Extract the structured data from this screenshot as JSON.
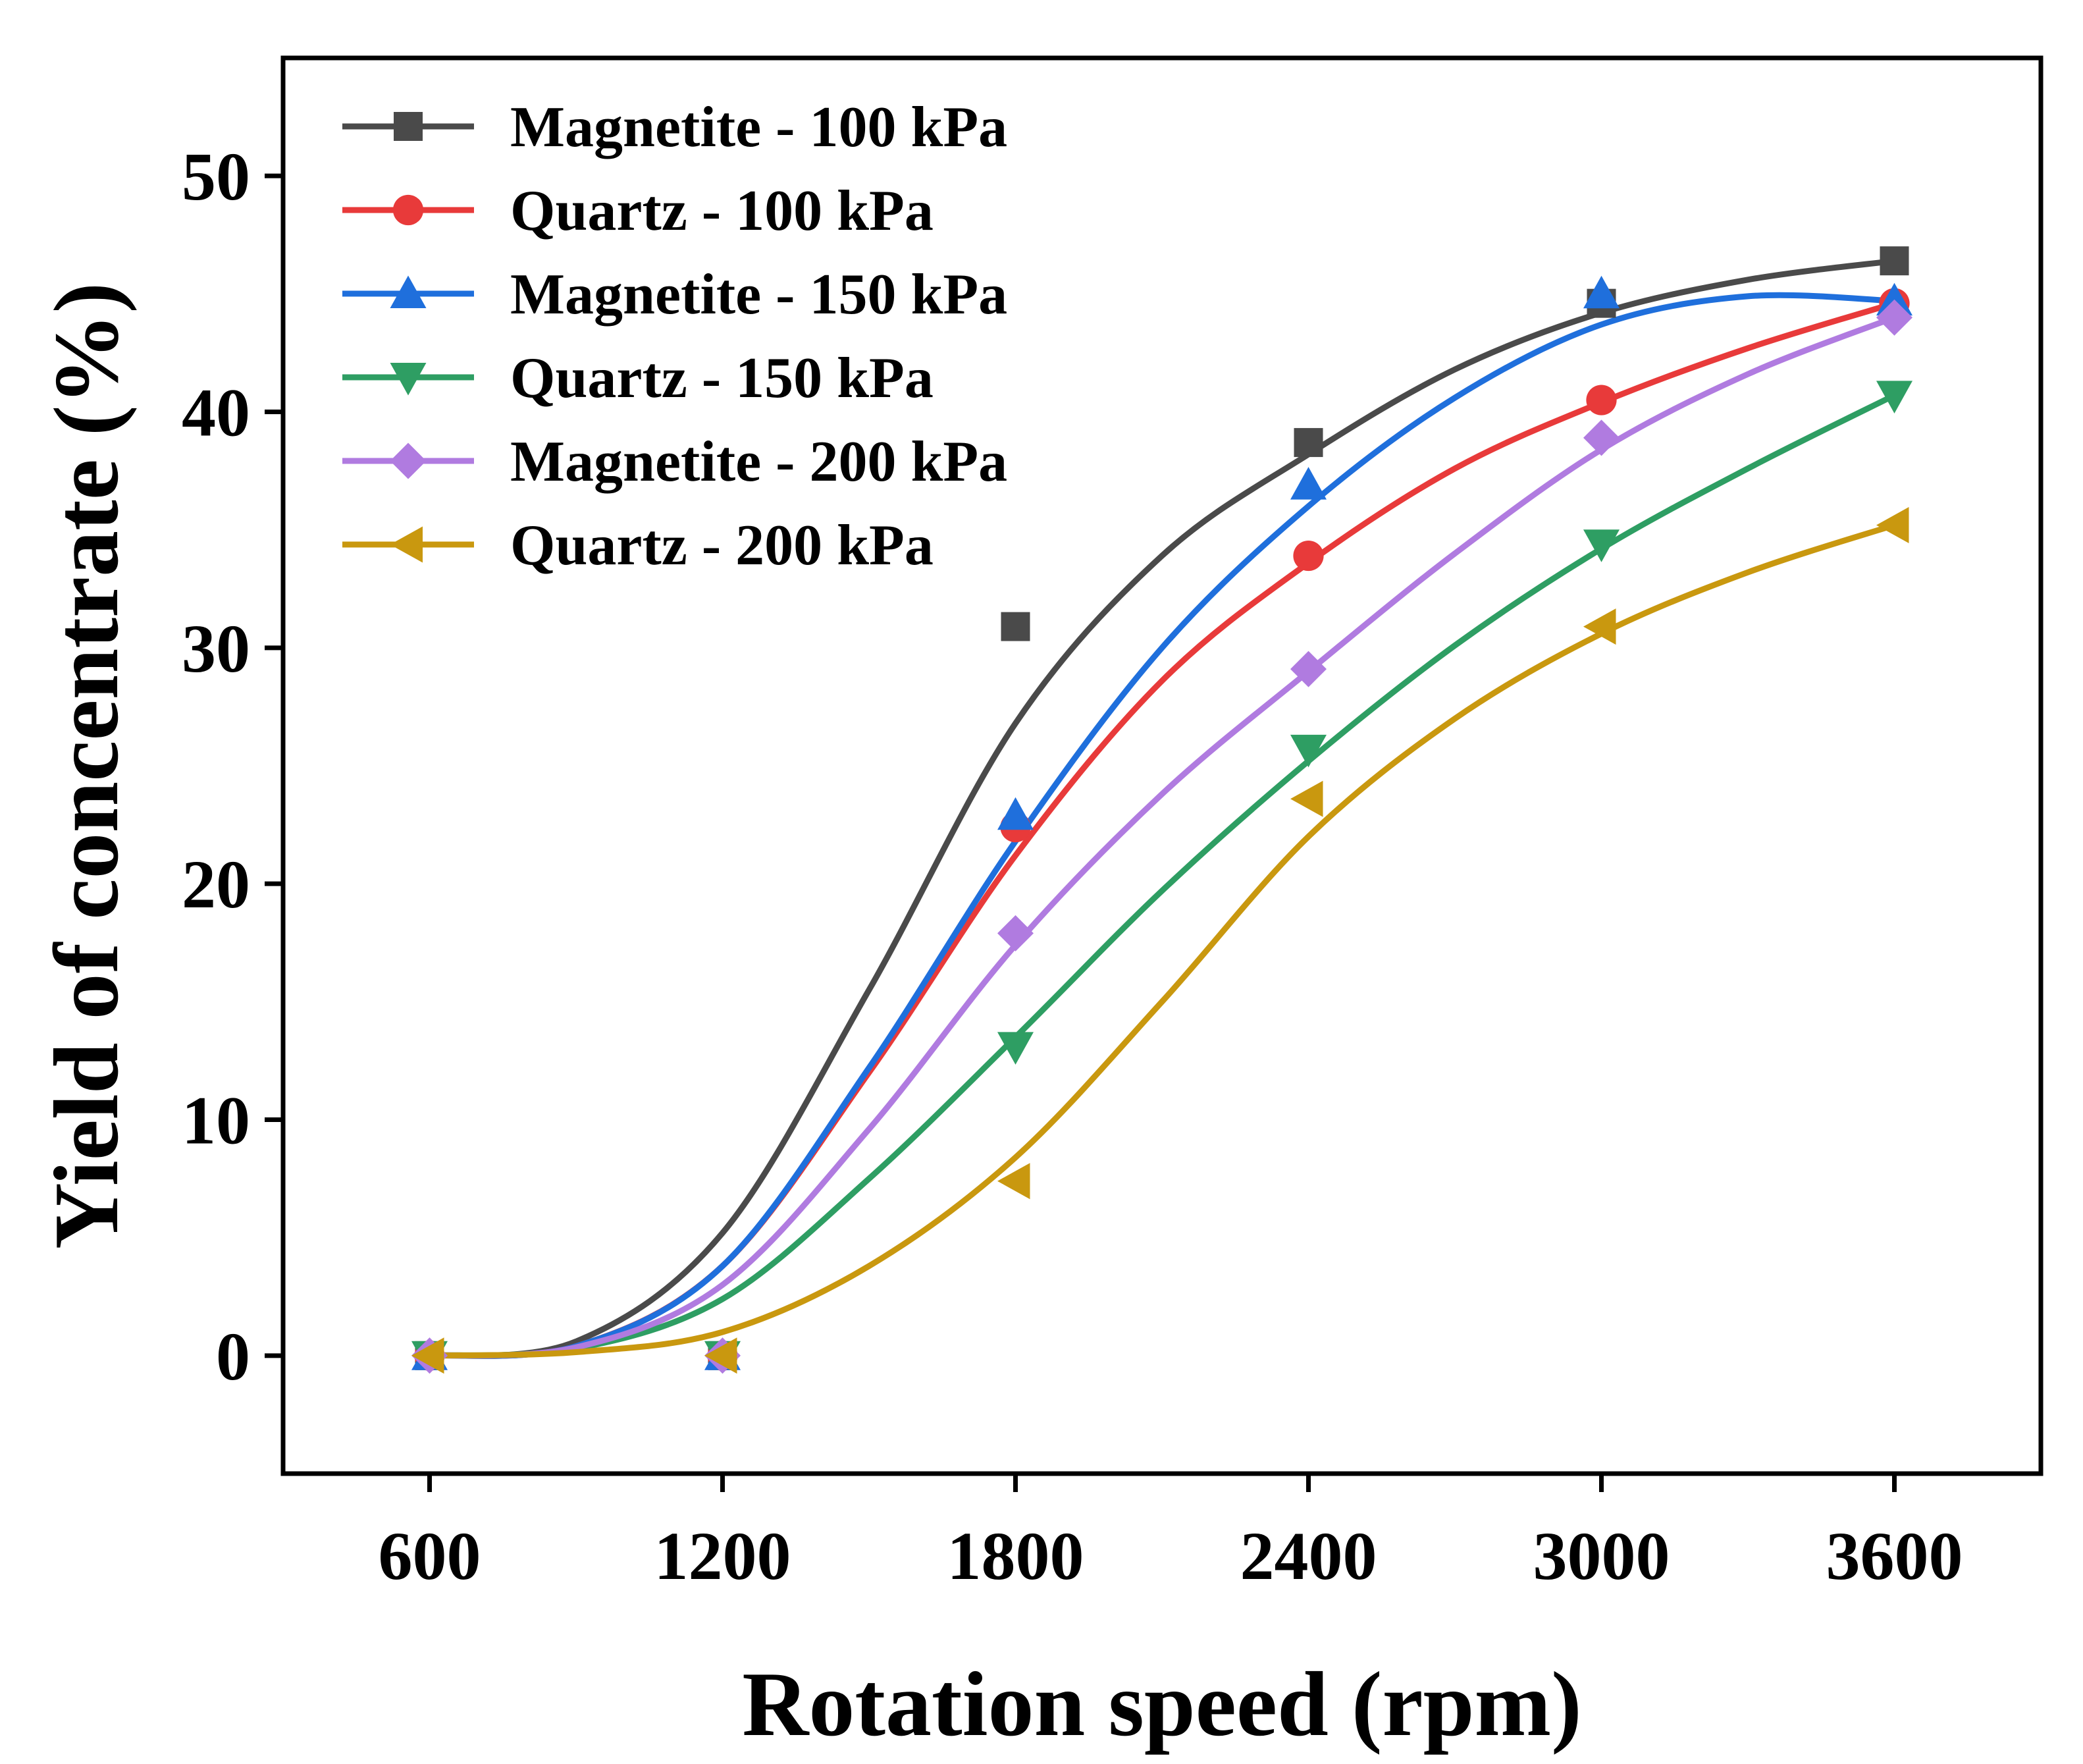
{
  "chart_data": {
    "type": "line",
    "title": "",
    "xlabel": "Rotation speed (rpm)",
    "ylabel": "Yield of concentrate (%)",
    "x": [
      600,
      1200,
      1800,
      2400,
      3000,
      3600
    ],
    "xticks": [
      "600",
      "1200",
      "1800",
      "2400",
      "3000",
      "3600"
    ],
    "xlim": [
      300,
      3900
    ],
    "yticks": [
      "0",
      "10",
      "20",
      "30",
      "40",
      "50"
    ],
    "ytick_values": [
      0,
      10,
      20,
      30,
      40,
      50
    ],
    "ylim": [
      -5,
      55
    ],
    "legend_position": "top-left",
    "grid": false,
    "series": [
      {
        "name": "Magnetite - 100 kPa",
        "color": "#4a4a4a",
        "marker": "square",
        "values": [
          0,
          0,
          30.9,
          38.7,
          44.6,
          46.4
        ],
        "fit": [
          [
            600,
            0
          ],
          [
            900,
            0.6
          ],
          [
            1200,
            5.2
          ],
          [
            1500,
            15.5
          ],
          [
            1800,
            26.8
          ],
          [
            2100,
            33.9
          ],
          [
            2400,
            38.2
          ],
          [
            2700,
            41.8
          ],
          [
            3000,
            44.2
          ],
          [
            3300,
            45.6
          ],
          [
            3600,
            46.4
          ]
        ]
      },
      {
        "name": "Quartz - 100 kPa",
        "color": "#e83a3a",
        "marker": "circle",
        "values": [
          0,
          0,
          22.4,
          33.9,
          40.5,
          44.6
        ],
        "fit": [
          [
            600,
            0
          ],
          [
            900,
            0.4
          ],
          [
            1200,
            3.8
          ],
          [
            1500,
            12.0
          ],
          [
            1800,
            21.2
          ],
          [
            2100,
            28.6
          ],
          [
            2400,
            33.6
          ],
          [
            2700,
            37.6
          ],
          [
            3000,
            40.4
          ],
          [
            3300,
            42.7
          ],
          [
            3600,
            44.6
          ]
        ]
      },
      {
        "name": "Magnetite - 150 kPa",
        "color": "#1f6fdc",
        "marker": "triangle-up",
        "values": [
          0,
          0,
          22.9,
          36.9,
          45.0,
          44.7
        ],
        "fit": [
          [
            600,
            0
          ],
          [
            900,
            0.4
          ],
          [
            1200,
            3.8
          ],
          [
            1500,
            12.2
          ],
          [
            1800,
            21.8
          ],
          [
            2100,
            30.0
          ],
          [
            2400,
            36.0
          ],
          [
            2700,
            40.6
          ],
          [
            3000,
            43.7
          ],
          [
            3300,
            44.9
          ],
          [
            3600,
            44.7
          ]
        ]
      },
      {
        "name": "Quartz - 150 kPa",
        "color": "#2e9e63",
        "marker": "triangle-down",
        "values": [
          0,
          0,
          13.1,
          25.7,
          34.4,
          40.7
        ],
        "fit": [
          [
            600,
            0
          ],
          [
            900,
            0.3
          ],
          [
            1200,
            2.4
          ],
          [
            1500,
            7.5
          ],
          [
            1800,
            13.5
          ],
          [
            2100,
            19.7
          ],
          [
            2400,
            25.2
          ],
          [
            2700,
            30.1
          ],
          [
            3000,
            34.2
          ],
          [
            3300,
            37.6
          ],
          [
            3600,
            40.7
          ]
        ]
      },
      {
        "name": "Magnetite - 200 kPa",
        "color": "#b07be0",
        "marker": "diamond",
        "values": [
          0,
          0,
          17.9,
          29.1,
          38.9,
          44.0
        ],
        "fit": [
          [
            600,
            0
          ],
          [
            900,
            0.35
          ],
          [
            1200,
            3.0
          ],
          [
            1500,
            9.6
          ],
          [
            1800,
            17.4
          ],
          [
            2100,
            23.8
          ],
          [
            2400,
            29.0
          ],
          [
            2700,
            34.0
          ],
          [
            3000,
            38.4
          ],
          [
            3300,
            41.6
          ],
          [
            3600,
            44.0
          ]
        ]
      },
      {
        "name": "Quartz - 200 kPa",
        "color": "#c9980f",
        "marker": "triangle-left",
        "values": [
          0,
          0,
          7.4,
          23.6,
          30.9,
          35.2
        ],
        "fit": [
          [
            600,
            0
          ],
          [
            900,
            0.15
          ],
          [
            1200,
            1.0
          ],
          [
            1500,
            3.8
          ],
          [
            1800,
            8.4
          ],
          [
            2100,
            15.0
          ],
          [
            2400,
            22.0
          ],
          [
            2700,
            27.0
          ],
          [
            3000,
            30.6
          ],
          [
            3300,
            33.2
          ],
          [
            3600,
            35.2
          ]
        ]
      }
    ]
  }
}
